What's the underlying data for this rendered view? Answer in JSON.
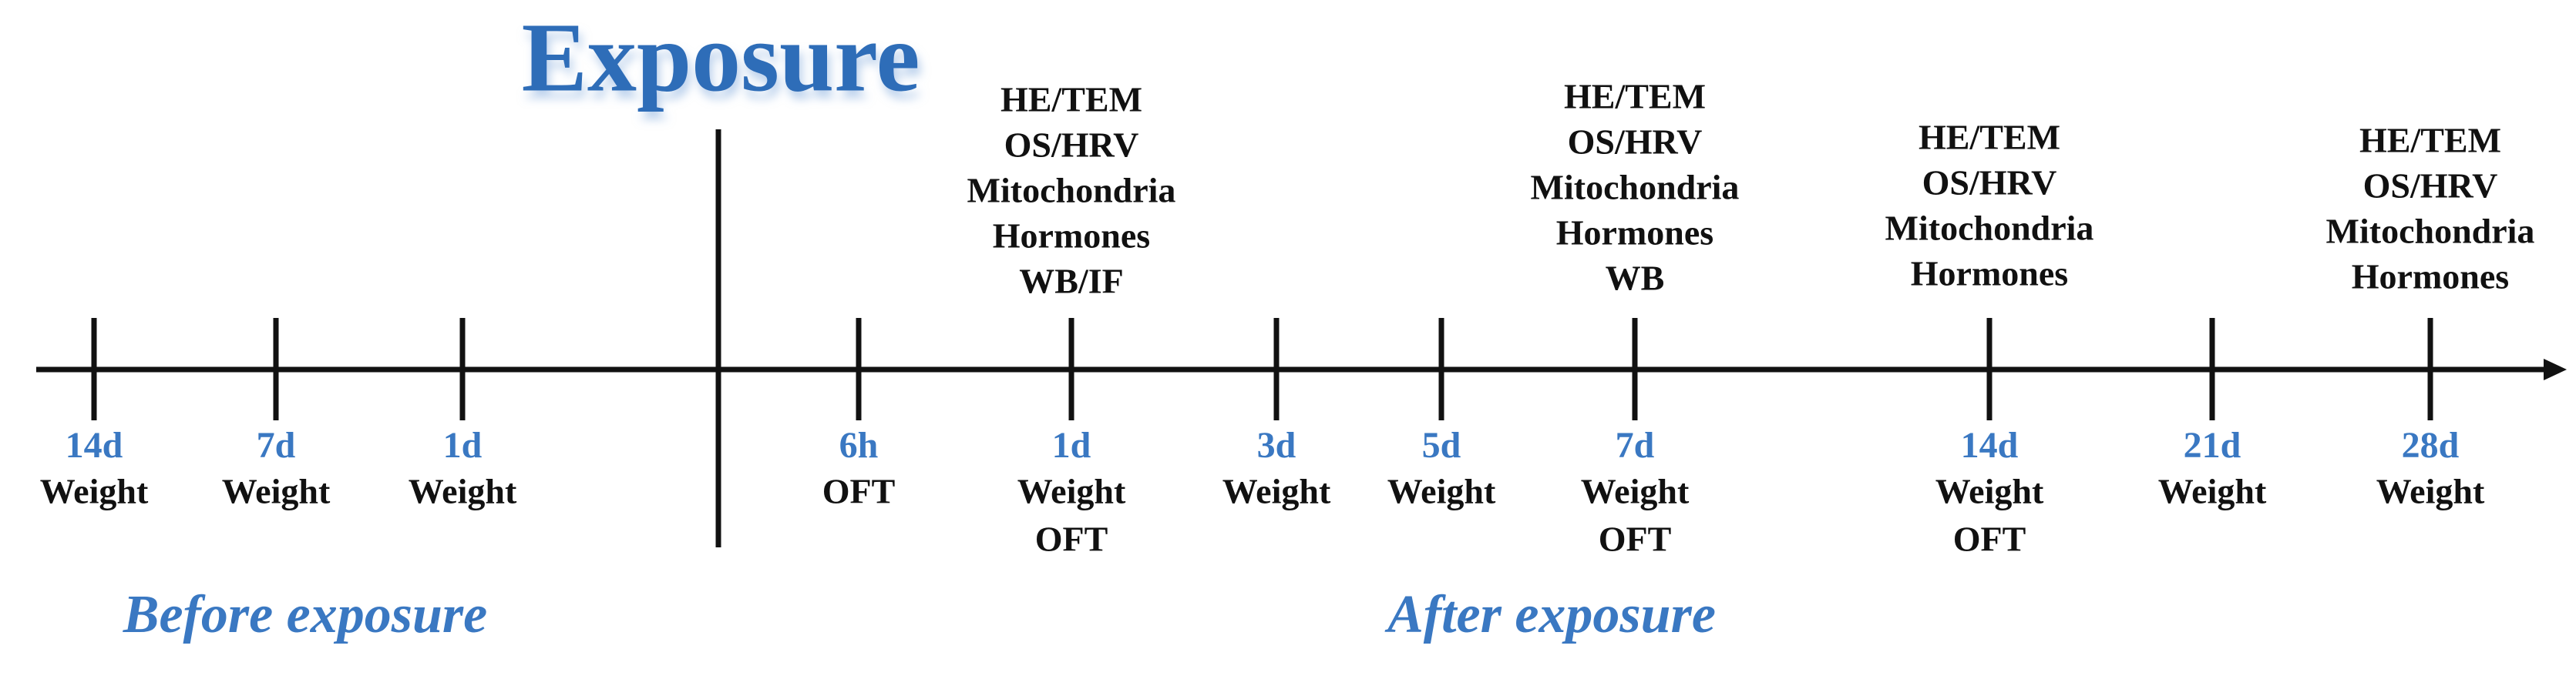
{
  "header": {
    "title": "Exposure"
  },
  "phases": {
    "before": "Before exposure",
    "after": "After exposure"
  },
  "timeline": {
    "points": [
      {
        "day": "14d",
        "below": [
          "Weight"
        ],
        "above": []
      },
      {
        "day": "7d",
        "below": [
          "Weight"
        ],
        "above": []
      },
      {
        "day": "1d",
        "below": [
          "Weight"
        ],
        "above": []
      },
      {
        "day": "6h",
        "below": [
          "OFT"
        ],
        "above": []
      },
      {
        "day": "1d",
        "below": [
          "Weight",
          "OFT"
        ],
        "above": [
          "HE/TEM",
          "OS/HRV",
          "Mitochondria",
          "Hormones",
          "WB/IF"
        ]
      },
      {
        "day": "3d",
        "below": [
          "Weight"
        ],
        "above": []
      },
      {
        "day": "5d",
        "below": [
          "Weight"
        ],
        "above": []
      },
      {
        "day": "7d",
        "below": [
          "Weight",
          "OFT"
        ],
        "above": [
          "HE/TEM",
          "OS/HRV",
          "Mitochondria",
          "Hormones",
          "WB"
        ]
      },
      {
        "day": "14d",
        "below": [
          "Weight",
          "OFT"
        ],
        "above": [
          "HE/TEM",
          "OS/HRV",
          "Mitochondria",
          "Hormones"
        ]
      },
      {
        "day": "21d",
        "below": [
          "Weight"
        ],
        "above": []
      },
      {
        "day": "28d",
        "below": [
          "Weight"
        ],
        "above": [
          "HE/TEM",
          "OS/HRV",
          "Mitochondria",
          "Hormones"
        ]
      }
    ]
  }
}
